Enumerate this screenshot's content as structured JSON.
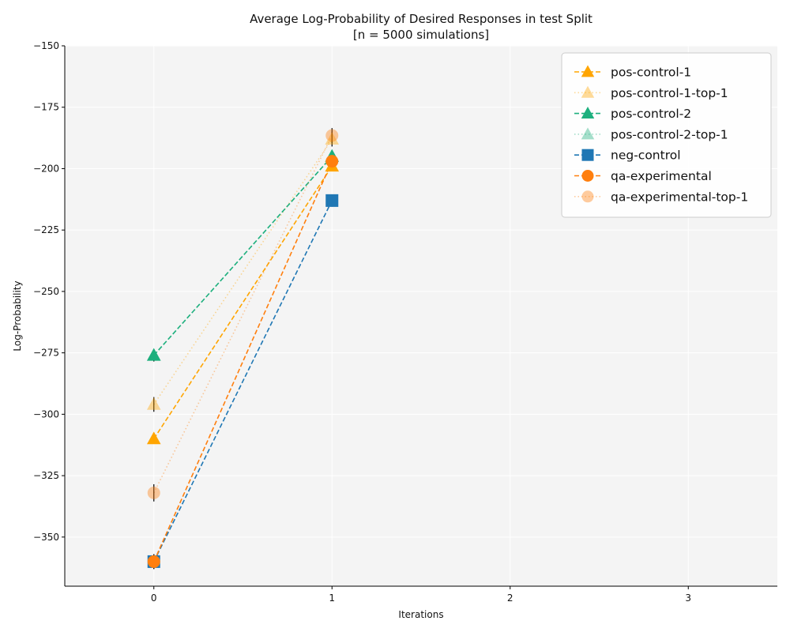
{
  "chart_data": {
    "type": "line",
    "title": "Average Log-Probability of Desired Responses in test Split",
    "subtitle": "[n = 5000 simulations]",
    "xlabel": "Iterations",
    "ylabel": "Log-Probability",
    "xlim": [
      -0.5,
      3.5
    ],
    "ylim": [
      -370,
      -150
    ],
    "xticks": [
      0,
      1,
      2,
      3
    ],
    "xtick_labels": [
      "0",
      "1",
      "2",
      "3"
    ],
    "yticks": [
      -350,
      -325,
      -300,
      -275,
      -250,
      -225,
      -200,
      -175,
      -150
    ],
    "ytick_labels": [
      "−350",
      "−325",
      "−300",
      "−275",
      "−250",
      "−225",
      "−200",
      "−175",
      "−150"
    ],
    "grid": true,
    "background": "#f4f4f4",
    "legend_position": "top-right",
    "series": [
      {
        "name": "pos-control-1",
        "x": [
          0,
          1
        ],
        "values": [
          -310,
          -199
        ],
        "error": [
          1.5,
          1.5
        ],
        "color": "#FFA500",
        "marker": "triangle",
        "linestyle": "dashed",
        "alpha": 1.0
      },
      {
        "name": "pos-control-1-top-1",
        "x": [
          0,
          1
        ],
        "values": [
          -296,
          -188
        ],
        "error": [
          3,
          3
        ],
        "color": "#FFA500",
        "marker": "triangle",
        "linestyle": "dotted",
        "alpha": 0.4
      },
      {
        "name": "pos-control-2",
        "x": [
          0,
          1
        ],
        "values": [
          -276,
          -195
        ],
        "error": [
          2.5,
          2.5
        ],
        "color": "#1DB07E",
        "marker": "triangle",
        "linestyle": "dashed",
        "alpha": 1.0
      },
      {
        "name": "pos-control-2-top-1",
        "x": [
          0,
          1
        ],
        "values": [
          -276,
          -195
        ],
        "error": [
          2.5,
          2.5
        ],
        "color": "#1DB07E",
        "marker": "triangle",
        "linestyle": "dotted",
        "alpha": 0.4
      },
      {
        "name": "neg-control",
        "x": [
          0,
          1
        ],
        "values": [
          -360,
          -213
        ],
        "error": [
          3,
          2.5
        ],
        "color": "#1F77B4",
        "marker": "square",
        "linestyle": "dashed",
        "alpha": 1.0
      },
      {
        "name": "qa-experimental",
        "x": [
          0,
          1
        ],
        "values": [
          -360,
          -197
        ],
        "error": [
          3,
          3
        ],
        "color": "#FF7F0E",
        "marker": "circle",
        "linestyle": "dashed",
        "alpha": 1.0
      },
      {
        "name": "qa-experimental-top-1",
        "x": [
          0,
          1
        ],
        "values": [
          -332,
          -186.5
        ],
        "error": [
          3.5,
          3
        ],
        "color": "#FF7F0E",
        "marker": "circle",
        "linestyle": "dotted",
        "alpha": 0.4
      }
    ]
  }
}
